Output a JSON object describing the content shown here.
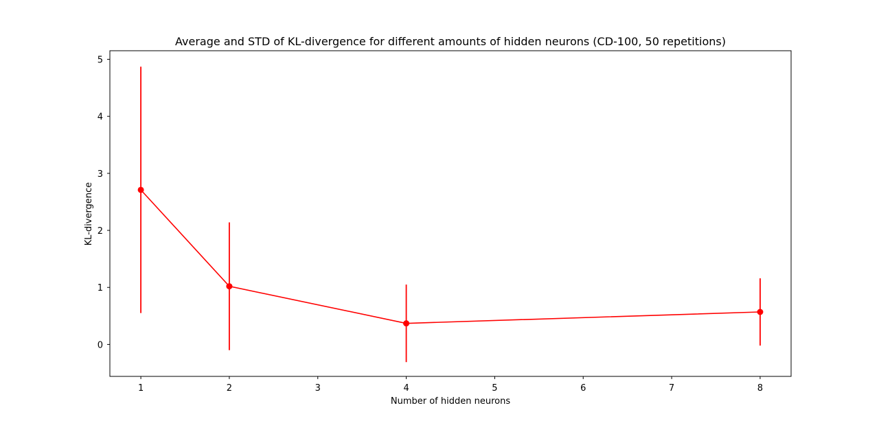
{
  "chart_data": {
    "type": "line",
    "title": "Average and STD of KL-divergence for different amounts of hidden neurons (CD-100, 50 repetitions)",
    "xlabel": "Number of hidden neurons",
    "ylabel": "KL-divergence",
    "x": [
      1,
      2,
      4,
      8
    ],
    "series": [
      {
        "values": [
          2.71,
          1.02,
          0.37,
          0.57
        ],
        "std": [
          2.16,
          1.12,
          0.68,
          0.59
        ],
        "color": "#ff0000"
      }
    ],
    "xlim": [
      0.65,
      8.35
    ],
    "ylim": [
      -0.56,
      5.15
    ],
    "xticks": [
      1,
      2,
      3,
      4,
      5,
      6,
      7,
      8
    ],
    "yticks": [
      0,
      1,
      2,
      3,
      4,
      5
    ],
    "grid": false,
    "legend": "none"
  }
}
